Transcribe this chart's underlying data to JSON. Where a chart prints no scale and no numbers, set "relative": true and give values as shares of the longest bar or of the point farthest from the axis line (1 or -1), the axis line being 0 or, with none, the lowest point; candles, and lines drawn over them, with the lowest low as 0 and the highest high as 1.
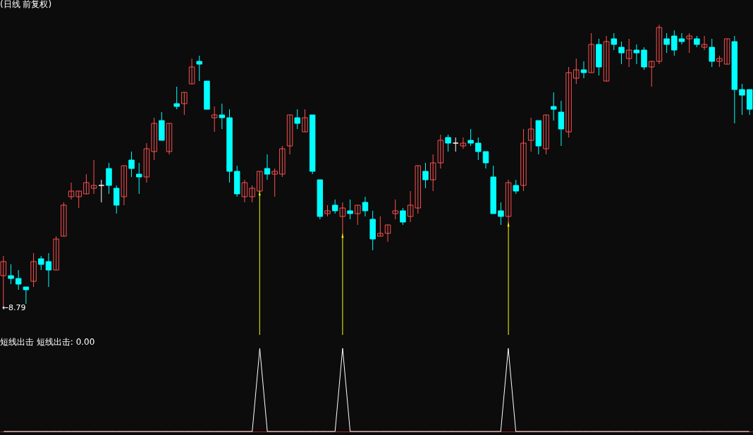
{
  "chart_data": [
    {
      "type": "candlestick",
      "title": "(日线 前复权)",
      "relative": true,
      "annotations": [
        "←8.79"
      ],
      "categories": [
        null,
        null,
        null,
        null,
        null,
        null,
        null,
        null,
        null,
        null,
        null,
        null,
        null,
        null,
        null,
        null,
        null,
        null,
        null,
        null,
        null,
        null,
        null,
        null,
        null,
        null,
        null,
        null,
        null,
        null,
        null,
        null,
        null,
        null,
        null,
        null,
        null,
        null,
        null,
        null,
        null,
        null,
        null,
        null,
        null,
        null,
        null,
        null,
        null,
        null,
        null,
        null,
        null,
        null,
        null,
        null,
        null,
        null,
        null,
        null,
        null,
        null,
        null,
        null,
        null,
        null,
        null,
        null,
        null,
        null,
        null,
        null,
        null,
        null,
        null,
        null,
        null,
        null,
        null,
        null,
        null,
        null,
        null,
        null,
        null,
        null,
        null,
        null,
        null,
        null,
        null,
        null,
        null,
        null,
        null,
        null,
        null,
        null,
        null,
        null
      ],
      "ohlc": [
        [
          0.11,
          0.18,
          0,
          0.16
        ],
        [
          0.11,
          0.15,
          0.08,
          0.1
        ],
        [
          0.1,
          0.13,
          0.06,
          0.08
        ],
        [
          0.07,
          0.07,
          0.01,
          0.06
        ],
        [
          0.09,
          0.19,
          0.07,
          0.16
        ],
        [
          0.17,
          0.18,
          0.13,
          0.15
        ],
        [
          0.16,
          0.19,
          0.07,
          0.13
        ],
        [
          0.13,
          0.25,
          0.13,
          0.24
        ],
        [
          0.25,
          0.37,
          0.25,
          0.36
        ],
        [
          0.39,
          0.44,
          0.38,
          0.41
        ],
        [
          0.39,
          0.41,
          0.35,
          0.41
        ],
        [
          0.4,
          0.47,
          0.4,
          0.44
        ],
        [
          0.42,
          0.52,
          0.4,
          0.43
        ],
        [
          0.43,
          0.45,
          0.37,
          0.43
        ],
        [
          0.49,
          0.51,
          0.4,
          0.43
        ],
        [
          0.42,
          0.43,
          0.33,
          0.36
        ],
        [
          0.39,
          0.5,
          0.36,
          0.5
        ],
        [
          0.52,
          0.55,
          0.46,
          0.49
        ],
        [
          0.47,
          0.51,
          0.4,
          0.46
        ],
        [
          0.46,
          0.58,
          0.44,
          0.56
        ],
        [
          0.55,
          0.67,
          0.52,
          0.65
        ],
        [
          0.66,
          0.69,
          0.59,
          0.59
        ],
        [
          0.55,
          0.65,
          0.54,
          0.65
        ],
        [
          0.72,
          0.78,
          0.7,
          0.71
        ],
        [
          0.72,
          0.76,
          0.68,
          0.76
        ],
        [
          0.79,
          0.88,
          0.79,
          0.85
        ],
        [
          0.87,
          0.89,
          0.8,
          0.86
        ],
        [
          0.8,
          0.8,
          0.7,
          0.7
        ],
        [
          0.67,
          0.71,
          0.62,
          0.68
        ],
        [
          0.68,
          0.72,
          0.63,
          0.67
        ],
        [
          0.67,
          0.7,
          0.44,
          0.48
        ],
        [
          0.48,
          0.5,
          0.39,
          0.4
        ],
        [
          0.39,
          0.45,
          0.37,
          0.44
        ],
        [
          0.39,
          0.43,
          0.37,
          0.42
        ],
        [
          0.41,
          0.48,
          0.41,
          0.48
        ],
        [
          0.49,
          0.54,
          0.45,
          0.47
        ],
        [
          0.47,
          0.49,
          0.39,
          0.48
        ],
        [
          0.47,
          0.57,
          0.46,
          0.56
        ],
        [
          0.57,
          0.68,
          0.54,
          0.68
        ],
        [
          0.67,
          0.7,
          0.63,
          0.65
        ],
        [
          0.62,
          0.7,
          0.62,
          0.67
        ],
        [
          0.68,
          0.68,
          0.47,
          0.48
        ],
        [
          0.45,
          0.45,
          0.31,
          0.32
        ],
        [
          0.33,
          0.36,
          0.32,
          0.34
        ],
        [
          0.36,
          0.38,
          0.33,
          0.34
        ],
        [
          0.32,
          0.37,
          0.26,
          0.35
        ],
        [
          0.34,
          0.38,
          0.31,
          0.33
        ],
        [
          0.33,
          0.36,
          0.29,
          0.36
        ],
        [
          0.37,
          0.39,
          0.32,
          0.34
        ],
        [
          0.31,
          0.34,
          0.2,
          0.24
        ],
        [
          0.25,
          0.32,
          0.25,
          0.26
        ],
        [
          0.26,
          0.29,
          0.23,
          0.29
        ],
        [
          0.33,
          0.38,
          0.31,
          0.34
        ],
        [
          0.34,
          0.35,
          0.29,
          0.3
        ],
        [
          0.32,
          0.41,
          0.3,
          0.36
        ],
        [
          0.35,
          0.5,
          0.33,
          0.5
        ],
        [
          0.48,
          0.51,
          0.42,
          0.45
        ],
        [
          0.45,
          0.54,
          0.41,
          0.51
        ],
        [
          0.51,
          0.61,
          0.49,
          0.59
        ],
        [
          0.6,
          0.61,
          0.55,
          0.58
        ],
        [
          0.58,
          0.6,
          0.55,
          0.58
        ],
        [
          0.57,
          0.6,
          0.56,
          0.58
        ],
        [
          0.59,
          0.63,
          0.57,
          0.58
        ],
        [
          0.58,
          0.6,
          0.52,
          0.55
        ],
        [
          0.55,
          0.55,
          0.49,
          0.51
        ],
        [
          0.46,
          0.5,
          0.33,
          0.33
        ],
        [
          0.34,
          0.37,
          0.29,
          0.32
        ],
        [
          0.32,
          0.45,
          0.3,
          0.44
        ],
        [
          0.43,
          0.45,
          0.4,
          0.41
        ],
        [
          0.43,
          0.63,
          0.41,
          0.58
        ],
        [
          0.59,
          0.67,
          0.55,
          0.63
        ],
        [
          0.66,
          0.66,
          0.54,
          0.57
        ],
        [
          0.56,
          0.68,
          0.54,
          0.68
        ],
        [
          0.71,
          0.76,
          0.66,
          0.7
        ],
        [
          0.69,
          0.73,
          0.57,
          0.63
        ],
        [
          0.62,
          0.85,
          0.6,
          0.83
        ],
        [
          0.81,
          0.88,
          0.79,
          0.84
        ],
        [
          0.84,
          0.87,
          0.81,
          0.83
        ],
        [
          0.83,
          0.97,
          0.83,
          0.93
        ],
        [
          0.93,
          0.95,
          0.82,
          0.85
        ],
        [
          0.8,
          0.96,
          0.8,
          0.94
        ],
        [
          0.95,
          0.97,
          0.91,
          0.93
        ],
        [
          0.92,
          0.94,
          0.86,
          0.9
        ],
        [
          0.88,
          0.95,
          0.85,
          0.91
        ],
        [
          0.91,
          0.93,
          0.86,
          0.9
        ],
        [
          0.91,
          0.92,
          0.84,
          0.85
        ],
        [
          0.85,
          0.87,
          0.78,
          0.87
        ],
        [
          0.87,
          1,
          0.86,
          0.99
        ],
        [
          0.95,
          0.97,
          0.9,
          0.93
        ],
        [
          0.96,
          0.98,
          0.89,
          0.91
        ],
        [
          0.95,
          0.97,
          0.93,
          0.94
        ],
        [
          0.95,
          0.97,
          0.9,
          0.96
        ],
        [
          0.95,
          0.96,
          0.92,
          0.93
        ],
        [
          0.92,
          0.96,
          0.91,
          0.93
        ],
        [
          0.92,
          0.95,
          0.85,
          0.87
        ],
        [
          0.87,
          0.89,
          0.85,
          0.88
        ],
        [
          0.86,
          0.95,
          0.86,
          0.95
        ],
        [
          0.94,
          0.96,
          0.65,
          0.77
        ],
        [
          0.77,
          0.79,
          0.68,
          0.75
        ],
        [
          0.77,
          0.77,
          0.68,
          0.7
        ]
      ],
      "colors": [
        "#ff5050",
        "#00ffff",
        "#00ffff",
        "#00ffff",
        "#ff5050",
        "#00ffff",
        "#00ffff",
        "#ff5050",
        "#ff5050",
        "#ff5050",
        "#ff5050",
        "#ff5050",
        "#ff5050",
        "#ffffff",
        "#00ffff",
        "#00ffff",
        "#ff5050",
        "#00ffff",
        "#00ffff",
        "#ff5050",
        "#ff5050",
        "#00ffff",
        "#ff5050",
        "#00ffff",
        "#ff5050",
        "#ff5050",
        "#00ffff",
        "#00ffff",
        "#ff5050",
        "#00ffff",
        "#00ffff",
        "#00ffff",
        "#ff5050",
        "#ff5050",
        "#ff5050",
        "#00ffff",
        "#ff5050",
        "#ff5050",
        "#ff5050",
        "#00ffff",
        "#ff5050",
        "#00ffff",
        "#00ffff",
        "#ff5050",
        "#00ffff",
        "#ff5050",
        "#00ffff",
        "#ff5050",
        "#00ffff",
        "#00ffff",
        "#ff5050",
        "#ff5050",
        "#ff5050",
        "#00ffff",
        "#ff5050",
        "#ff5050",
        "#00ffff",
        "#ff5050",
        "#ff5050",
        "#00ffff",
        "#ffffff",
        "#ff5050",
        "#00ffff",
        "#00ffff",
        "#00ffff",
        "#00ffff",
        "#00ffff",
        "#ff5050",
        "#00ffff",
        "#ff5050",
        "#ff5050",
        "#00ffff",
        "#ff5050",
        "#00ffff",
        "#00ffff",
        "#ff5050",
        "#ff5050",
        "#00ffff",
        "#ff5050",
        "#00ffff",
        "#ff5050",
        "#00ffff",
        "#00ffff",
        "#ff5050",
        "#00ffff",
        "#00ffff",
        "#ff5050",
        "#ff5050",
        "#00ffff",
        "#00ffff",
        "#00ffff",
        "#ff5050",
        "#00ffff",
        "#ff5050",
        "#00ffff",
        "#ff5050",
        "#ff5050",
        "#00ffff",
        "#00ffff",
        "#00ffff"
      ]
    },
    {
      "type": "line",
      "title": "短线出击 短线出击: 0.00",
      "relative": true,
      "categories": [
        null,
        null,
        null,
        null,
        null,
        null,
        null,
        null,
        null,
        null,
        null,
        null,
        null,
        null,
        null,
        null,
        null,
        null,
        null,
        null,
        null,
        null,
        null,
        null,
        null,
        null,
        null,
        null,
        null,
        null,
        null,
        null,
        null,
        null,
        null,
        null,
        null,
        null,
        null,
        null,
        null,
        null,
        null,
        null,
        null,
        null,
        null,
        null,
        null,
        null,
        null,
        null,
        null,
        null,
        null,
        null,
        null,
        null,
        null,
        null,
        null,
        null,
        null,
        null,
        null,
        null,
        null,
        null,
        null,
        null,
        null,
        null,
        null,
        null,
        null,
        null,
        null,
        null,
        null,
        null,
        null,
        null,
        null,
        null,
        null,
        null,
        null,
        null,
        null,
        null,
        null,
        null,
        null,
        null,
        null,
        null,
        null,
        null,
        null,
        null
      ],
      "series": [
        {
          "color": "#ffffff",
          "values": [
            0,
            0,
            0,
            0,
            0,
            0,
            0,
            0,
            0,
            0,
            0,
            0,
            0,
            0,
            0,
            0,
            0,
            0,
            0,
            0,
            0,
            0,
            0,
            0,
            0,
            0,
            0,
            0,
            0,
            0,
            0,
            0,
            0,
            0,
            1,
            0,
            0,
            0,
            0,
            0,
            0,
            0,
            0,
            0,
            0,
            1,
            0,
            0,
            0,
            0,
            0,
            0,
            0,
            0,
            0,
            0,
            0,
            0,
            0,
            0,
            0,
            0,
            0,
            0,
            0,
            0,
            0,
            1,
            0,
            0,
            0,
            0,
            0,
            0,
            0,
            0,
            0,
            0,
            0,
            0,
            0,
            0,
            0,
            0,
            0,
            0,
            0,
            0,
            0,
            0,
            0,
            0,
            0,
            0,
            0,
            0,
            0,
            0,
            0,
            0
          ]
        }
      ]
    }
  ]
}
